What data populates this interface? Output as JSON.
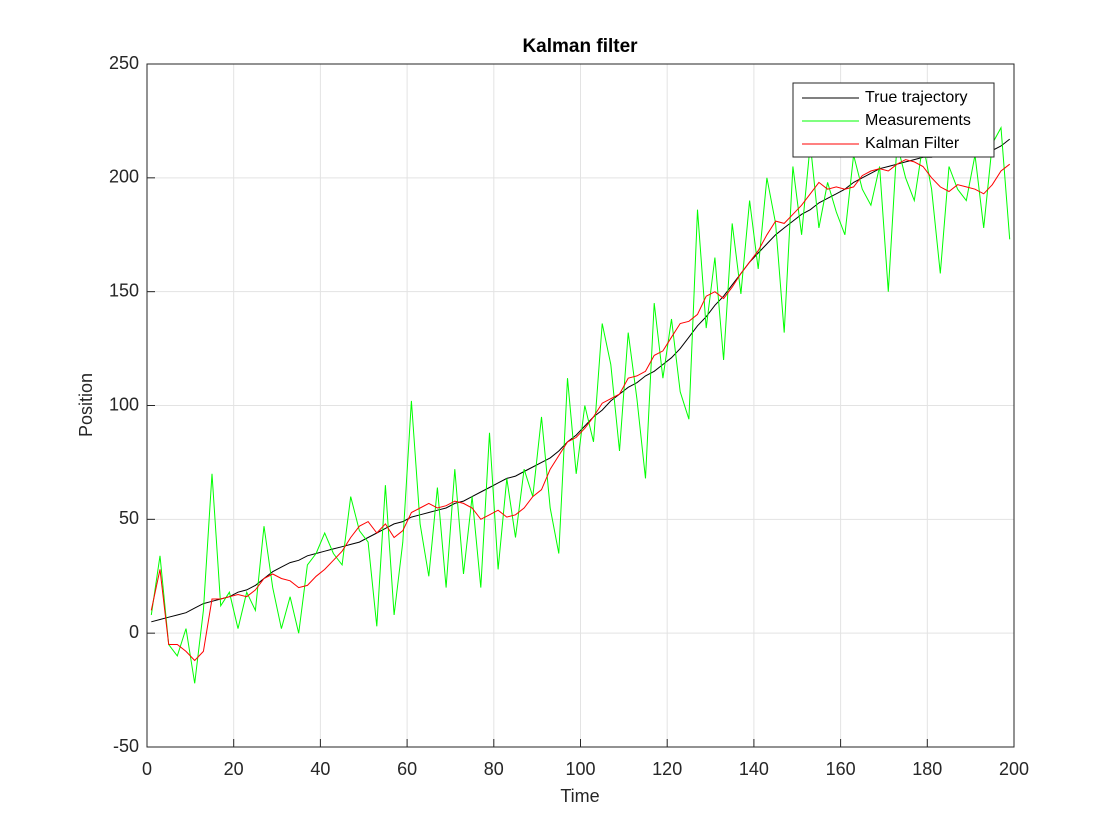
{
  "chart_data": {
    "type": "line",
    "title": "Kalman filter",
    "x_label": "Time",
    "y_label": "Position",
    "x": [
      1,
      3,
      5,
      7,
      9,
      11,
      13,
      15,
      17,
      19,
      21,
      23,
      25,
      27,
      29,
      31,
      33,
      35,
      37,
      39,
      41,
      43,
      45,
      47,
      49,
      51,
      53,
      55,
      57,
      59,
      61,
      63,
      65,
      67,
      69,
      71,
      73,
      75,
      77,
      79,
      81,
      83,
      85,
      87,
      89,
      91,
      93,
      95,
      97,
      99,
      101,
      103,
      105,
      107,
      109,
      111,
      113,
      115,
      117,
      119,
      121,
      123,
      125,
      127,
      129,
      131,
      133,
      135,
      137,
      139,
      141,
      143,
      145,
      147,
      149,
      151,
      153,
      155,
      157,
      159,
      161,
      163,
      165,
      167,
      169,
      171,
      173,
      175,
      177,
      179,
      181,
      183,
      185,
      187,
      189,
      191,
      193,
      195,
      197,
      199
    ],
    "series": [
      {
        "name": "True trajectory",
        "color": "#000000",
        "values": [
          5,
          6,
          7,
          8,
          9,
          11,
          13,
          14,
          15,
          16,
          18,
          19,
          21,
          24,
          27,
          29,
          31,
          32,
          34,
          35,
          36,
          37,
          38,
          39,
          40,
          42,
          44,
          46,
          48,
          49,
          51,
          52,
          53,
          54,
          55,
          57,
          58,
          60,
          62,
          64,
          66,
          68,
          69,
          71,
          73,
          75,
          77,
          80,
          84,
          87,
          91,
          95,
          98,
          102,
          105,
          108,
          110,
          113,
          115,
          118,
          121,
          125,
          130,
          135,
          139,
          144,
          148,
          153,
          158,
          163,
          167,
          171,
          175,
          178,
          181,
          184,
          186,
          189,
          191,
          193,
          195,
          198,
          200,
          202,
          204,
          205,
          206,
          207,
          208,
          209,
          209,
          210,
          210,
          210,
          210,
          210,
          211,
          212,
          214,
          217
        ]
      },
      {
        "name": "Measurements",
        "color": "#00ff00",
        "values": [
          8,
          34,
          -5,
          -10,
          2,
          -22,
          10,
          70,
          12,
          18,
          2,
          18,
          10,
          47,
          20,
          2,
          16,
          0,
          30,
          35,
          44,
          35,
          30,
          60,
          45,
          40,
          3,
          65,
          8,
          40,
          102,
          48,
          25,
          64,
          20,
          72,
          26,
          60,
          20,
          88,
          28,
          68,
          42,
          72,
          60,
          95,
          55,
          35,
          112,
          70,
          100,
          84,
          136,
          118,
          80,
          132,
          103,
          68,
          145,
          112,
          138,
          106,
          94,
          186,
          134,
          165,
          120,
          180,
          149,
          190,
          160,
          200,
          180,
          132,
          205,
          175,
          215,
          178,
          198,
          185,
          175,
          210,
          195,
          188,
          205,
          150,
          215,
          200,
          190,
          215,
          195,
          158,
          205,
          195,
          190,
          210,
          178,
          215,
          222,
          173
        ]
      },
      {
        "name": "Kalman Filter",
        "color": "#ff0000",
        "values": [
          10,
          28,
          -5,
          -5,
          -8,
          -12,
          -8,
          15,
          15,
          16,
          17,
          16,
          19,
          24,
          26,
          24,
          23,
          20,
          21,
          25,
          28,
          32,
          36,
          42,
          47,
          49,
          44,
          48,
          42,
          45,
          53,
          55,
          57,
          55,
          56,
          58,
          57,
          55,
          50,
          52,
          54,
          51,
          52,
          55,
          60,
          63,
          72,
          78,
          84,
          86,
          90,
          95,
          101,
          103,
          105,
          112,
          113,
          115,
          122,
          124,
          130,
          136,
          137,
          140,
          148,
          150,
          147,
          152,
          158,
          163,
          168,
          175,
          181,
          180,
          184,
          188,
          193,
          198,
          195,
          196,
          195,
          196,
          201,
          203,
          204,
          203,
          206,
          208,
          207,
          205,
          200,
          196,
          194,
          197,
          196,
          195,
          193,
          197,
          203,
          206
        ]
      }
    ],
    "xlim": [
      0,
      200
    ],
    "xticks": [
      0,
      20,
      40,
      60,
      80,
      100,
      120,
      140,
      160,
      180,
      200
    ],
    "ylim": [
      -50,
      250
    ],
    "yticks": [
      -50,
      0,
      50,
      100,
      150,
      200,
      250
    ],
    "grid": true,
    "legend": "upper right"
  }
}
